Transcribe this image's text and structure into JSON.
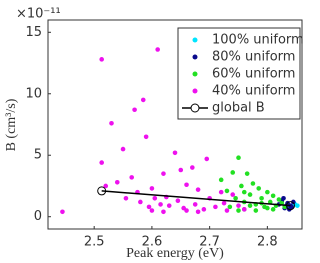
{
  "chart_data": {
    "type": "scatter",
    "xlabel": "Peak energy (eV)",
    "ylabel": "B (cm³/s)",
    "y_multiplier": "×10⁻¹¹",
    "xlim": [
      2.42,
      2.86
    ],
    "ylim": [
      -1,
      16
    ],
    "xticks": [
      2.5,
      2.6,
      2.7,
      2.8
    ],
    "yticks": [
      0,
      5,
      10,
      15
    ],
    "legend": "upper right",
    "series": [
      {
        "name": "100% uniform",
        "color": "#00e5ff",
        "mode": "markers",
        "x": [
          2.848,
          2.852,
          2.846
        ],
        "values": [
          1.0,
          0.9,
          1.1
        ]
      },
      {
        "name": "80% uniform",
        "color": "#0a0a8c",
        "mode": "markers",
        "x": [
          2.82,
          2.825,
          2.83,
          2.835,
          2.84,
          2.845,
          2.838,
          2.828,
          2.842,
          2.833
        ],
        "values": [
          1.0,
          1.3,
          0.7,
          1.1,
          0.9,
          1.2,
          0.6,
          1.5,
          0.8,
          0.9
        ]
      },
      {
        "name": "60% uniform",
        "color": "#22e022",
        "mode": "markers",
        "x": [
          2.72,
          2.73,
          2.74,
          2.745,
          2.75,
          2.755,
          2.76,
          2.765,
          2.77,
          2.775,
          2.78,
          2.785,
          2.79,
          2.795,
          2.8,
          2.805,
          2.81,
          2.815,
          2.82,
          2.825,
          2.83,
          2.76,
          2.77,
          2.78,
          2.79,
          2.8,
          2.735,
          2.75,
          2.81,
          2.76
        ],
        "values": [
          3.0,
          2.1,
          3.6,
          1.5,
          4.8,
          2.5,
          1.2,
          3.5,
          1.8,
          2.7,
          1.0,
          2.3,
          1.5,
          0.8,
          2.0,
          1.2,
          1.7,
          0.9,
          1.4,
          1.1,
          0.8,
          0.6,
          0.9,
          0.5,
          1.1,
          0.7,
          0.8,
          0.5,
          0.6,
          2.0
        ]
      },
      {
        "name": "40% uniform",
        "color": "#ee11ee",
        "mode": "markers",
        "x": [
          2.445,
          2.513,
          2.513,
          2.52,
          2.53,
          2.54,
          2.55,
          2.555,
          2.565,
          2.57,
          2.575,
          2.58,
          2.585,
          2.59,
          2.595,
          2.6,
          2.605,
          2.61,
          2.615,
          2.62,
          2.625,
          2.63,
          2.64,
          2.645,
          2.65,
          2.655,
          2.66,
          2.67,
          2.675,
          2.68,
          2.69,
          2.695,
          2.7,
          2.71,
          2.72,
          2.725,
          2.73,
          2.74,
          2.75,
          2.76,
          2.6,
          2.62,
          2.66,
          2.68
        ],
        "values": [
          0.4,
          12.8,
          4.4,
          2.5,
          7.6,
          2.8,
          5.5,
          1.5,
          3.2,
          8.7,
          2.0,
          1.2,
          9.5,
          6.5,
          0.8,
          2.3,
          1.5,
          13.6,
          1.0,
          3.5,
          1.6,
          0.9,
          5.2,
          1.3,
          3.8,
          0.7,
          2.6,
          4.0,
          1.0,
          2.2,
          0.6,
          4.7,
          1.5,
          0.8,
          2.0,
          1.1,
          0.5,
          1.8,
          0.9,
          0.6,
          0.5,
          0.4,
          0.5,
          0.4
        ]
      },
      {
        "name": "global B",
        "color": "#000000",
        "mode": "line-circles",
        "x": [
          2.513,
          2.84
        ],
        "values": [
          2.1,
          0.9
        ]
      }
    ]
  }
}
